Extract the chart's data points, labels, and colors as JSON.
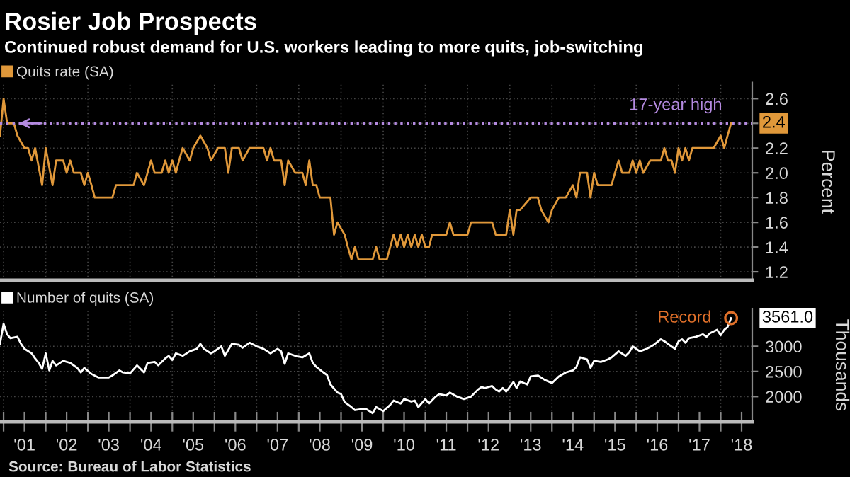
{
  "chart_data": [
    {
      "type": "line",
      "title": "Rosier Job Prospects",
      "subtitle": "Continued robust demand for U.S. workers leading to more quits, job-switching",
      "ylabel": "Percent",
      "x": [
        "2000-12",
        "2001-01",
        "2001-02",
        "2001-04",
        "2001-05",
        "2001-07",
        "2001-08",
        "2001-09",
        "2001-10",
        "2001-12",
        "2002-01",
        "2002-03",
        "2002-04",
        "2002-06",
        "2002-07",
        "2002-08",
        "2002-09",
        "2002-11",
        "2002-12",
        "2003-01",
        "2003-02",
        "2003-03",
        "2003-08",
        "2003-09",
        "2004-02",
        "2004-03",
        "2004-05",
        "2004-07",
        "2004-08",
        "2004-10",
        "2004-11",
        "2004-12",
        "2005-01",
        "2005-02",
        "2005-03",
        "2005-04",
        "2005-06",
        "2005-07",
        "2005-09",
        "2005-11",
        "2005-12",
        "2006-02",
        "2006-04",
        "2006-05",
        "2006-06",
        "2006-08",
        "2006-09",
        "2006-11",
        "2007-03",
        "2007-04",
        "2007-05",
        "2007-06",
        "2007-08",
        "2007-09",
        "2007-10",
        "2007-12",
        "2008-02",
        "2008-03",
        "2008-04",
        "2008-05",
        "2008-06",
        "2008-07",
        "2008-10",
        "2008-11",
        "2008-12",
        "2009-02",
        "2009-03",
        "2009-04",
        "2009-05",
        "2009-06",
        "2009-10",
        "2009-11",
        "2009-12",
        "2010-02",
        "2010-04",
        "2010-05",
        "2010-06",
        "2010-07",
        "2010-08",
        "2010-09",
        "2010-10",
        "2010-11",
        "2010-12",
        "2011-01",
        "2011-02",
        "2011-03",
        "2011-07",
        "2011-08",
        "2011-09",
        "2012-01",
        "2012-02",
        "2012-08",
        "2012-09",
        "2012-12",
        "2013-01",
        "2013-02",
        "2013-03",
        "2013-04",
        "2013-07",
        "2013-09",
        "2013-10",
        "2013-12",
        "2014-01",
        "2014-03",
        "2014-05",
        "2014-07",
        "2014-08",
        "2014-09",
        "2014-11",
        "2014-12",
        "2015-01",
        "2015-02",
        "2015-06",
        "2015-07",
        "2015-08",
        "2015-09",
        "2015-11",
        "2015-12",
        "2016-01",
        "2016-02",
        "2016-03",
        "2016-05",
        "2016-08",
        "2016-09",
        "2016-10",
        "2016-11",
        "2016-12",
        "2017-01",
        "2017-02",
        "2017-03",
        "2017-04",
        "2017-05",
        "2017-11",
        "2018-01",
        "2018-02",
        "2018-03",
        "2018-04"
      ],
      "series": [
        {
          "name": "Quits rate (SA)",
          "color": "#e0983a",
          "values": [
            2.3,
            2.6,
            2.4,
            2.4,
            2.3,
            2.2,
            2.2,
            2.1,
            2.2,
            1.9,
            2.2,
            1.9,
            2.1,
            2.1,
            2.0,
            2.1,
            2.0,
            2.0,
            1.9,
            2.0,
            1.9,
            1.8,
            1.8,
            1.9,
            1.9,
            2.0,
            1.9,
            2.1,
            2.0,
            2.0,
            2.1,
            2.0,
            2.1,
            2.0,
            2.1,
            2.2,
            2.1,
            2.2,
            2.3,
            2.2,
            2.1,
            2.2,
            2.2,
            2.0,
            2.2,
            2.2,
            2.1,
            2.2,
            2.2,
            2.1,
            2.2,
            2.1,
            2.1,
            1.9,
            2.1,
            2.0,
            2.0,
            1.9,
            2.1,
            1.9,
            1.9,
            1.8,
            1.8,
            1.5,
            1.6,
            1.5,
            1.4,
            1.3,
            1.4,
            1.3,
            1.3,
            1.4,
            1.3,
            1.3,
            1.5,
            1.4,
            1.5,
            1.4,
            1.5,
            1.4,
            1.5,
            1.4,
            1.5,
            1.4,
            1.4,
            1.5,
            1.5,
            1.6,
            1.5,
            1.5,
            1.6,
            1.6,
            1.5,
            1.5,
            1.7,
            1.5,
            1.7,
            1.7,
            1.8,
            1.8,
            1.7,
            1.6,
            1.7,
            1.8,
            1.8,
            1.9,
            1.8,
            2.0,
            2.0,
            1.8,
            2.0,
            1.9,
            1.9,
            2.0,
            2.1,
            2.0,
            2.0,
            2.1,
            2.0,
            2.1,
            2.0,
            2.1,
            2.1,
            2.2,
            2.1,
            2.1,
            2.0,
            2.2,
            2.1,
            2.2,
            2.1,
            2.2,
            2.2,
            2.3,
            2.2,
            2.3,
            2.4
          ]
        }
      ],
      "xlim": [
        "2000-12",
        "2018-10"
      ],
      "ylim": [
        1.13,
        2.73
      ],
      "yticks": [
        1.2,
        1.4,
        1.6,
        1.8,
        {
          "value": 2.0,
          "label": "2.0"
        },
        2.2,
        {
          "value": 2.4,
          "label": null
        },
        2.6
      ],
      "ref_lines": [
        {
          "axis": "y",
          "value": 2.4,
          "label": "17-year high",
          "color": "#b48ae0",
          "line_style": "dotted"
        }
      ],
      "annotations": [
        {
          "text": "2.4",
          "x": "2018-04",
          "y": 2.4
        }
      ],
      "grid": true,
      "legend": "top left",
      "tick_labels": "y"
    },
    {
      "type": "line",
      "ylabel": "Thousands",
      "x": [
        "2000-12",
        "2001-01",
        "2001-02",
        "2001-03",
        "2001-05",
        "2001-06",
        "2001-07",
        "2001-09",
        "2001-10",
        "2001-11",
        "2001-12",
        "2002-01",
        "2002-02",
        "2002-03",
        "2002-04",
        "2002-06",
        "2002-08",
        "2002-10",
        "2002-11",
        "2002-12",
        "2003-02",
        "2003-04",
        "2003-07",
        "2003-08",
        "2003-10",
        "2003-11",
        "2004-01",
        "2004-03",
        "2004-05",
        "2004-06",
        "2004-08",
        "2004-09",
        "2004-11",
        "2004-12",
        "2005-01",
        "2005-02",
        "2005-04",
        "2005-06",
        "2005-08",
        "2005-09",
        "2005-10",
        "2005-12",
        "2006-01",
        "2006-03",
        "2006-04",
        "2006-06",
        "2006-08",
        "2006-09",
        "2006-11",
        "2007-01",
        "2007-03",
        "2007-05",
        "2007-07",
        "2007-08",
        "2007-09",
        "2007-10",
        "2007-12",
        "2008-02",
        "2008-04",
        "2008-05",
        "2008-06",
        "2008-08",
        "2008-09",
        "2008-10",
        "2008-12",
        "2009-01",
        "2009-02",
        "2009-04",
        "2009-05",
        "2009-08",
        "2009-10",
        "2009-11",
        "2010-01",
        "2010-03",
        "2010-04",
        "2010-06",
        "2010-07",
        "2010-09",
        "2010-10",
        "2010-11",
        "2011-01",
        "2011-02",
        "2011-04",
        "2011-05",
        "2011-07",
        "2011-08",
        "2011-10",
        "2011-12",
        "2012-02",
        "2012-04",
        "2012-05",
        "2012-06",
        "2012-08",
        "2012-09",
        "2012-10",
        "2012-11",
        "2012-12",
        "2013-02",
        "2013-03",
        "2013-04",
        "2013-06",
        "2013-07",
        "2013-09",
        "2013-11",
        "2014-01",
        "2014-03",
        "2014-05",
        "2014-07",
        "2014-08",
        "2014-09",
        "2014-11",
        "2014-12",
        "2015-01",
        "2015-03",
        "2015-05",
        "2015-06",
        "2015-08",
        "2015-10",
        "2015-11",
        "2015-12",
        "2016-02",
        "2016-04",
        "2016-06",
        "2016-08",
        "2016-09",
        "2016-10",
        "2016-12",
        "2017-01",
        "2017-02",
        "2017-03",
        "2017-04",
        "2017-06",
        "2017-08",
        "2017-09",
        "2017-10",
        "2017-12",
        "2018-01",
        "2018-02",
        "2018-03",
        "2018-04"
      ],
      "series": [
        {
          "name": "Number of quits (SA)",
          "color": "#ffffff",
          "values": [
            3050,
            3450,
            3240,
            3160,
            3190,
            3050,
            2950,
            2860,
            2760,
            2670,
            2550,
            2860,
            2520,
            2710,
            2620,
            2710,
            2670,
            2570,
            2480,
            2570,
            2450,
            2380,
            2380,
            2420,
            2520,
            2480,
            2460,
            2620,
            2480,
            2670,
            2690,
            2620,
            2760,
            2810,
            2730,
            2860,
            2810,
            2900,
            2950,
            3050,
            2950,
            2860,
            2900,
            3000,
            2810,
            3050,
            3030,
            2970,
            3070,
            3000,
            2950,
            2860,
            2950,
            2900,
            2650,
            2860,
            2810,
            2780,
            2860,
            2670,
            2590,
            2480,
            2430,
            2240,
            2080,
            2050,
            1890,
            1790,
            1730,
            1760,
            1670,
            1790,
            1710,
            1830,
            1920,
            1860,
            1950,
            1900,
            1920,
            1790,
            1950,
            1860,
            2000,
            2050,
            2020,
            2080,
            2000,
            1950,
            2000,
            2140,
            2190,
            2170,
            2210,
            2140,
            2100,
            2170,
            2100,
            2290,
            2170,
            2300,
            2240,
            2400,
            2420,
            2330,
            2270,
            2400,
            2480,
            2520,
            2590,
            2780,
            2740,
            2570,
            2710,
            2690,
            2740,
            2780,
            2900,
            2810,
            2880,
            3000,
            2900,
            2950,
            3030,
            3140,
            3100,
            3050,
            2950,
            3100,
            3140,
            3070,
            3160,
            3190,
            3240,
            3190,
            3260,
            3330,
            3220,
            3330,
            3380,
            3561
          ]
        }
      ],
      "xlim": [
        "2000-12",
        "2018-10"
      ],
      "ylim": [
        1500,
        3750
      ],
      "yticks": [
        2000,
        2500,
        3000
      ],
      "xticks": [
        {
          "value": "2001-01",
          "label": null
        },
        {
          "value": "2001-07",
          "label": "'01"
        },
        {
          "value": "2002-01",
          "label": null
        },
        {
          "value": "2002-07",
          "label": "'02"
        },
        {
          "value": "2003-01",
          "label": null
        },
        {
          "value": "2003-07",
          "label": "'03"
        },
        {
          "value": "2004-01",
          "label": null
        },
        {
          "value": "2004-07",
          "label": "'04"
        },
        {
          "value": "2005-01",
          "label": null
        },
        {
          "value": "2005-07",
          "label": "'05"
        },
        {
          "value": "2006-01",
          "label": null
        },
        {
          "value": "2006-07",
          "label": "'06"
        },
        {
          "value": "2007-01",
          "label": null
        },
        {
          "value": "2007-07",
          "label": "'07"
        },
        {
          "value": "2008-01",
          "label": null
        },
        {
          "value": "2008-07",
          "label": "'08"
        },
        {
          "value": "2009-01",
          "label": null
        },
        {
          "value": "2009-07",
          "label": "'09"
        },
        {
          "value": "2010-01",
          "label": null
        },
        {
          "value": "2010-07",
          "label": "'10"
        },
        {
          "value": "2011-01",
          "label": null
        },
        {
          "value": "2011-07",
          "label": "'11"
        },
        {
          "value": "2012-01",
          "label": null
        },
        {
          "value": "2012-07",
          "label": "'12"
        },
        {
          "value": "2013-01",
          "label": null
        },
        {
          "value": "2013-07",
          "label": "'13"
        },
        {
          "value": "2014-01",
          "label": null
        },
        {
          "value": "2014-07",
          "label": "'14"
        },
        {
          "value": "2015-01",
          "label": null
        },
        {
          "value": "2015-07",
          "label": "'15"
        },
        {
          "value": "2016-01",
          "label": null
        },
        {
          "value": "2016-07",
          "label": "'16"
        },
        {
          "value": "2017-01",
          "label": null
        },
        {
          "value": "2017-07",
          "label": "'17"
        },
        {
          "value": "2018-01",
          "label": null
        },
        {
          "value": "2018-07",
          "label": "'18"
        }
      ],
      "annotations": [
        {
          "text": "Record",
          "x": "2018-04",
          "y": 3561
        },
        {
          "text": "3561.0",
          "x": "2018-04",
          "y": 3561
        },
        "Source: Bureau of Labor Statistics"
      ],
      "grid": true,
      "legend": "top left"
    }
  ]
}
